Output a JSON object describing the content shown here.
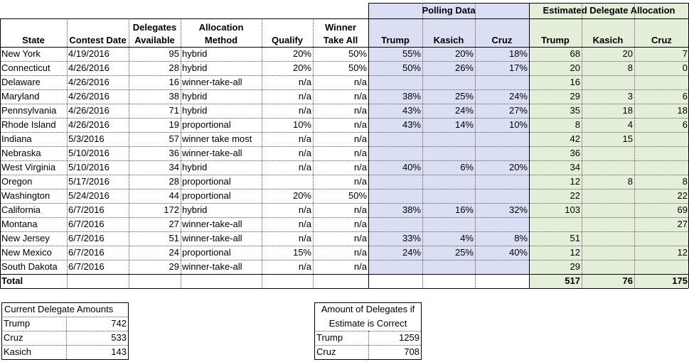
{
  "group_headers": {
    "polling": "Polling Data",
    "estimated": "Estimated Delegate Allocation"
  },
  "columns": [
    "State",
    "Contest Date",
    "Delegates Available",
    "Allocation Method",
    "Qualify",
    "Winner Take All",
    "Trump",
    "Kasich",
    "Cruz",
    "Trump",
    "Kasich",
    "Cruz"
  ],
  "rows": [
    [
      "New York",
      "4/19/2016",
      "95",
      "hybrid",
      "20%",
      "50%",
      "55%",
      "20%",
      "18%",
      "68",
      "20",
      "7"
    ],
    [
      "Connecticut",
      "4/26/2016",
      "28",
      "hybrid",
      "20%",
      "50%",
      "50%",
      "26%",
      "17%",
      "20",
      "8",
      "0"
    ],
    [
      "Delaware",
      "4/26/2016",
      "16",
      "winner-take-all",
      "n/a",
      "n/a",
      "",
      "",
      "",
      "16",
      "",
      ""
    ],
    [
      "Maryland",
      "4/26/2016",
      "38",
      "hybrid",
      "n/a",
      "n/a",
      "38%",
      "25%",
      "24%",
      "29",
      "3",
      "6"
    ],
    [
      "Pennsylvania",
      "4/26/2016",
      "71",
      "hybrid",
      "n/a",
      "n/a",
      "43%",
      "24%",
      "27%",
      "35",
      "18",
      "18"
    ],
    [
      "Rhode Island",
      "4/26/2016",
      "19",
      "proportional",
      "10%",
      "n/a",
      "43%",
      "14%",
      "10%",
      "8",
      "4",
      "6"
    ],
    [
      "Indiana",
      "5/3/2016",
      "57",
      "winner take most",
      "n/a",
      "n/a",
      "",
      "",
      "",
      "42",
      "15",
      ""
    ],
    [
      "Nebraska",
      "5/10/2016",
      "36",
      "winner-take-all",
      "n/a",
      "n/a",
      "",
      "",
      "",
      "36",
      "",
      ""
    ],
    [
      "West Virginia",
      "5/10/2016",
      "34",
      "hybrid",
      "n/a",
      "n/a",
      "40%",
      "6%",
      "20%",
      "34",
      "",
      ""
    ],
    [
      "Oregon",
      "5/17/2016",
      "28",
      "proportional",
      "",
      "n/a",
      "",
      "",
      "",
      "12",
      "8",
      "8"
    ],
    [
      "Washington",
      "5/24/2016",
      "44",
      "proportional",
      "20%",
      "50%",
      "",
      "",
      "",
      "22",
      "",
      "22"
    ],
    [
      "California",
      "6/7/2016",
      "172",
      "hybrid",
      "n/a",
      "n/a",
      "38%",
      "16%",
      "32%",
      "103",
      "",
      "69"
    ],
    [
      "Montana",
      "6/7/2016",
      "27",
      "winner-take-all",
      "n/a",
      "n/a",
      "",
      "",
      "",
      "",
      "",
      "27"
    ],
    [
      "New Jersey",
      "6/7/2016",
      "51",
      "winner-take-all",
      "n/a",
      "n/a",
      "33%",
      "4%",
      "8%",
      "51",
      "",
      ""
    ],
    [
      "New Mexico",
      "6/7/2016",
      "24",
      "proportional",
      "15%",
      "n/a",
      "24%",
      "25%",
      "40%",
      "12",
      "",
      "12"
    ],
    [
      "South Dakota",
      "6/7/2016",
      "29",
      "winner-take-all",
      "n/a",
      "n/a",
      "",
      "",
      "",
      "29",
      "",
      ""
    ]
  ],
  "total": {
    "label": "Total",
    "trump": "517",
    "kasich": "76",
    "cruz": "175"
  },
  "current": {
    "title": "Current Delegate Amounts",
    "rows": [
      [
        "Trump",
        "742"
      ],
      [
        "Cruz",
        "533"
      ],
      [
        "Kasich",
        "143"
      ]
    ]
  },
  "if_correct": {
    "title_line1": "Amount of Delegates if",
    "title_line2": "Estimate is Correct",
    "rows": [
      [
        "Trump",
        "1259"
      ],
      [
        "Cruz",
        "708"
      ]
    ]
  }
}
